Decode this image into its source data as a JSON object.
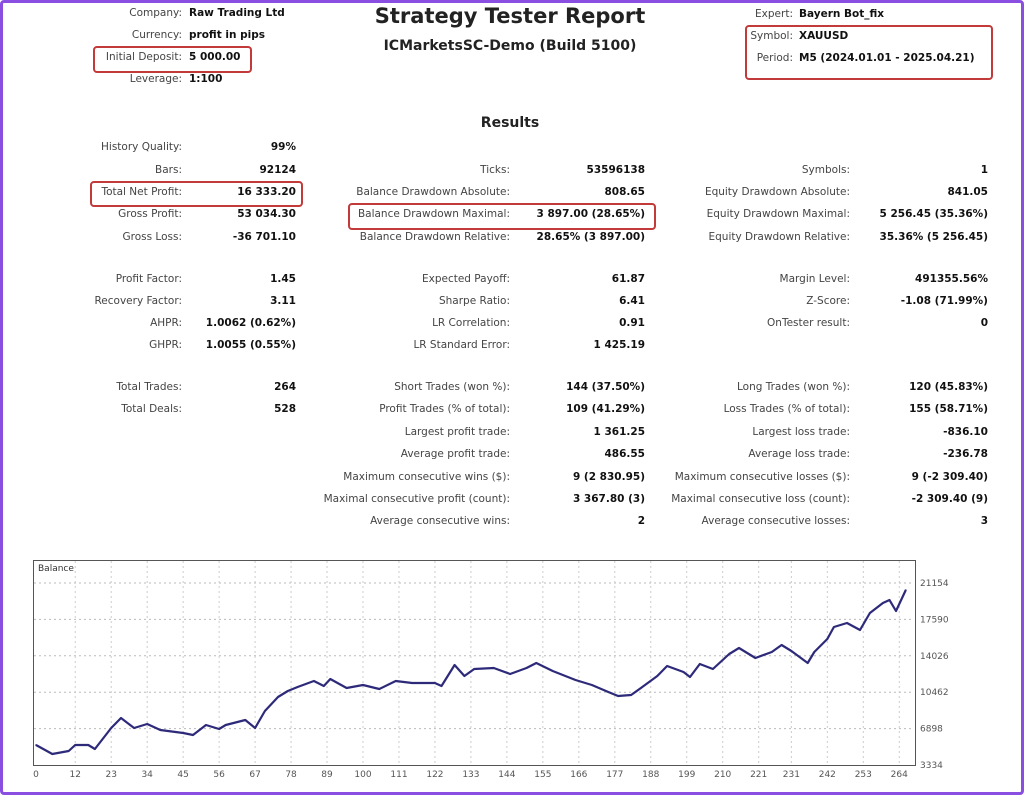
{
  "header": {
    "title": "Strategy Tester Report",
    "server": "ICMarketsSC-Demo (Build 5100)",
    "left": [
      {
        "label": "Company:",
        "value": "Raw Trading Ltd"
      },
      {
        "label": "Currency:",
        "value": "profit in pips"
      },
      {
        "label": "Initial Deposit:",
        "value": "5 000.00"
      },
      {
        "label": "Leverage:",
        "value": "1:100"
      }
    ],
    "right": [
      {
        "label": "Expert:",
        "value": "Bayern Bot_fix"
      },
      {
        "label": "Symbol:",
        "value": "XAUUSD"
      },
      {
        "label": "Period:",
        "value": "M5 (2024.01.01 - 2025.04.21)"
      }
    ]
  },
  "results_title": "Results",
  "rows": [
    [
      [
        "History Quality:",
        "99%"
      ],
      null,
      null
    ],
    [
      [
        "Bars:",
        "92124"
      ],
      [
        "Ticks:",
        "53596138"
      ],
      [
        "Symbols:",
        "1"
      ]
    ],
    [
      [
        "Total Net Profit:",
        "16 333.20"
      ],
      [
        "Balance Drawdown Absolute:",
        "808.65"
      ],
      [
        "Equity Drawdown Absolute:",
        "841.05"
      ]
    ],
    [
      [
        "Gross Profit:",
        "53 034.30"
      ],
      [
        "Balance Drawdown Maximal:",
        "3 897.00 (28.65%)"
      ],
      [
        "Equity Drawdown Maximal:",
        "5 256.45 (35.36%)"
      ]
    ],
    [
      [
        "Gross Loss:",
        "-36 701.10"
      ],
      [
        "Balance Drawdown Relative:",
        "28.65% (3 897.00)"
      ],
      [
        "Equity Drawdown Relative:",
        "35.36% (5 256.45)"
      ]
    ],
    [
      [
        "Profit Factor:",
        "1.45"
      ],
      [
        "Expected Payoff:",
        "61.87"
      ],
      [
        "Margin Level:",
        "491355.56%"
      ]
    ],
    [
      [
        "Recovery Factor:",
        "3.11"
      ],
      [
        "Sharpe Ratio:",
        "6.41"
      ],
      [
        "Z-Score:",
        "-1.08 (71.99%)"
      ]
    ],
    [
      [
        "AHPR:",
        "1.0062 (0.62%)"
      ],
      [
        "LR Correlation:",
        "0.91"
      ],
      [
        "OnTester result:",
        "0"
      ]
    ],
    [
      [
        "GHPR:",
        "1.0055 (0.55%)"
      ],
      [
        "LR Standard Error:",
        "1 425.19"
      ],
      null
    ],
    [
      [
        "Total Trades:",
        "264"
      ],
      [
        "Short Trades (won %):",
        "144 (37.50%)"
      ],
      [
        "Long Trades (won %):",
        "120 (45.83%)"
      ]
    ],
    [
      [
        "Total Deals:",
        "528"
      ],
      [
        "Profit Trades (% of total):",
        "109 (41.29%)"
      ],
      [
        "Loss Trades (% of total):",
        "155 (58.71%)"
      ]
    ],
    [
      null,
      [
        "Largest profit trade:",
        "1 361.25"
      ],
      [
        "Largest loss trade:",
        "-836.10"
      ]
    ],
    [
      null,
      [
        "Average profit trade:",
        "486.55"
      ],
      [
        "Average loss trade:",
        "-236.78"
      ]
    ],
    [
      null,
      [
        "Maximum consecutive wins ($):",
        "9 (2 830.95)"
      ],
      [
        "Maximum consecutive losses ($):",
        "9 (-2 309.40)"
      ]
    ],
    [
      null,
      [
        "Maximal consecutive profit (count):",
        "3 367.80 (3)"
      ],
      [
        "Maximal consecutive loss (count):",
        "-2 309.40 (9)"
      ]
    ],
    [
      null,
      [
        "Average consecutive wins:",
        "2"
      ],
      [
        "Average consecutive losses:",
        "3"
      ]
    ]
  ],
  "colors": {
    "border": "#8a4fe0",
    "highlight": "#c23a3a",
    "line": "#2e2a7a"
  },
  "chart_data": {
    "type": "line",
    "title": "Balance",
    "xlabel": "",
    "ylabel": "",
    "xlim": [
      0,
      266
    ],
    "ylim": [
      3334,
      21154
    ],
    "x_ticks": [
      0,
      12,
      23,
      34,
      45,
      56,
      67,
      78,
      89,
      100,
      111,
      122,
      133,
      144,
      155,
      166,
      177,
      188,
      199,
      210,
      221,
      231,
      242,
      253,
      264
    ],
    "y_ticks": [
      3334,
      6898,
      10462,
      14026,
      17590,
      21154
    ],
    "grid": true,
    "series": [
      {
        "name": "Balance",
        "x": [
          0,
          5,
          10,
          12,
          16,
          18,
          23,
          26,
          30,
          34,
          38,
          45,
          48,
          52,
          56,
          58,
          64,
          67,
          70,
          74,
          77,
          80,
          85,
          88,
          90,
          95,
          100,
          105,
          110,
          115,
          122,
          124,
          128,
          131,
          134,
          140,
          145,
          150,
          153,
          158,
          165,
          170,
          175,
          178,
          182,
          185,
          190,
          193,
          198,
          200,
          203,
          207,
          212,
          215,
          220,
          225,
          228,
          231,
          236,
          238,
          242,
          244,
          248,
          252,
          255,
          259,
          261,
          263,
          266
        ],
        "y": [
          5292,
          4411,
          4705,
          5292,
          5292,
          4900,
          6956,
          7935,
          6956,
          7348,
          6761,
          6467,
          6271,
          7250,
          6858,
          7250,
          7740,
          6956,
          8621,
          9991,
          10579,
          10970,
          11558,
          11068,
          11753,
          10872,
          11166,
          10774,
          11558,
          11362,
          11362,
          11068,
          13124,
          12047,
          12732,
          12830,
          12243,
          12830,
          13320,
          12537,
          11656,
          11166,
          10481,
          10089,
          10187,
          10872,
          12047,
          13026,
          12439,
          11949,
          13222,
          12732,
          14201,
          14788,
          13809,
          14397,
          15082,
          14495,
          13320,
          14397,
          15669,
          16844,
          17236,
          16551,
          18215,
          19194,
          19488,
          18411,
          20467
        ]
      }
    ]
  }
}
